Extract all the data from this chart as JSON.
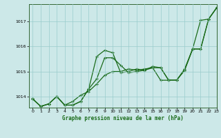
{
  "title": "Graphe pression niveau de la mer (hPa)",
  "background_color": "#cce8e8",
  "grid_color": "#99cccc",
  "line_color": "#1a6b1a",
  "xlim": [
    -0.5,
    23
  ],
  "ylim": [
    1013.55,
    1017.7
  ],
  "yticks": [
    1014,
    1015,
    1016,
    1017
  ],
  "xticks": [
    0,
    1,
    2,
    3,
    4,
    5,
    6,
    7,
    8,
    9,
    10,
    11,
    12,
    13,
    14,
    15,
    16,
    17,
    18,
    19,
    20,
    21,
    22,
    23
  ],
  "series": [
    [
      1013.9,
      1013.6,
      1013.7,
      1014.0,
      1013.65,
      1013.8,
      1014.05,
      1014.2,
      1014.5,
      1014.85,
      1015.0,
      1015.0,
      1015.1,
      1015.05,
      1015.1,
      1015.15,
      1014.65,
      1014.65,
      1014.65,
      1015.05,
      1015.9,
      1017.05,
      1017.1,
      1017.55
    ],
    [
      1013.9,
      1013.6,
      1013.7,
      1014.0,
      1013.65,
      1013.65,
      1013.8,
      1014.3,
      1015.6,
      1015.85,
      1015.75,
      1014.95,
      1015.0,
      1015.1,
      1015.05,
      1015.2,
      1015.15,
      1014.65,
      1014.65,
      1015.1,
      1015.9,
      1015.9,
      1017.1,
      1017.55
    ],
    [
      1013.9,
      1013.6,
      1013.7,
      1014.0,
      1013.65,
      1013.65,
      1013.8,
      1014.3,
      1014.7,
      1015.55,
      1015.55,
      1015.25,
      1014.95,
      1015.0,
      1015.05,
      1015.15,
      1015.15,
      1014.65,
      1014.65,
      1015.05,
      1015.9,
      1015.9,
      1017.1,
      1017.55
    ]
  ]
}
